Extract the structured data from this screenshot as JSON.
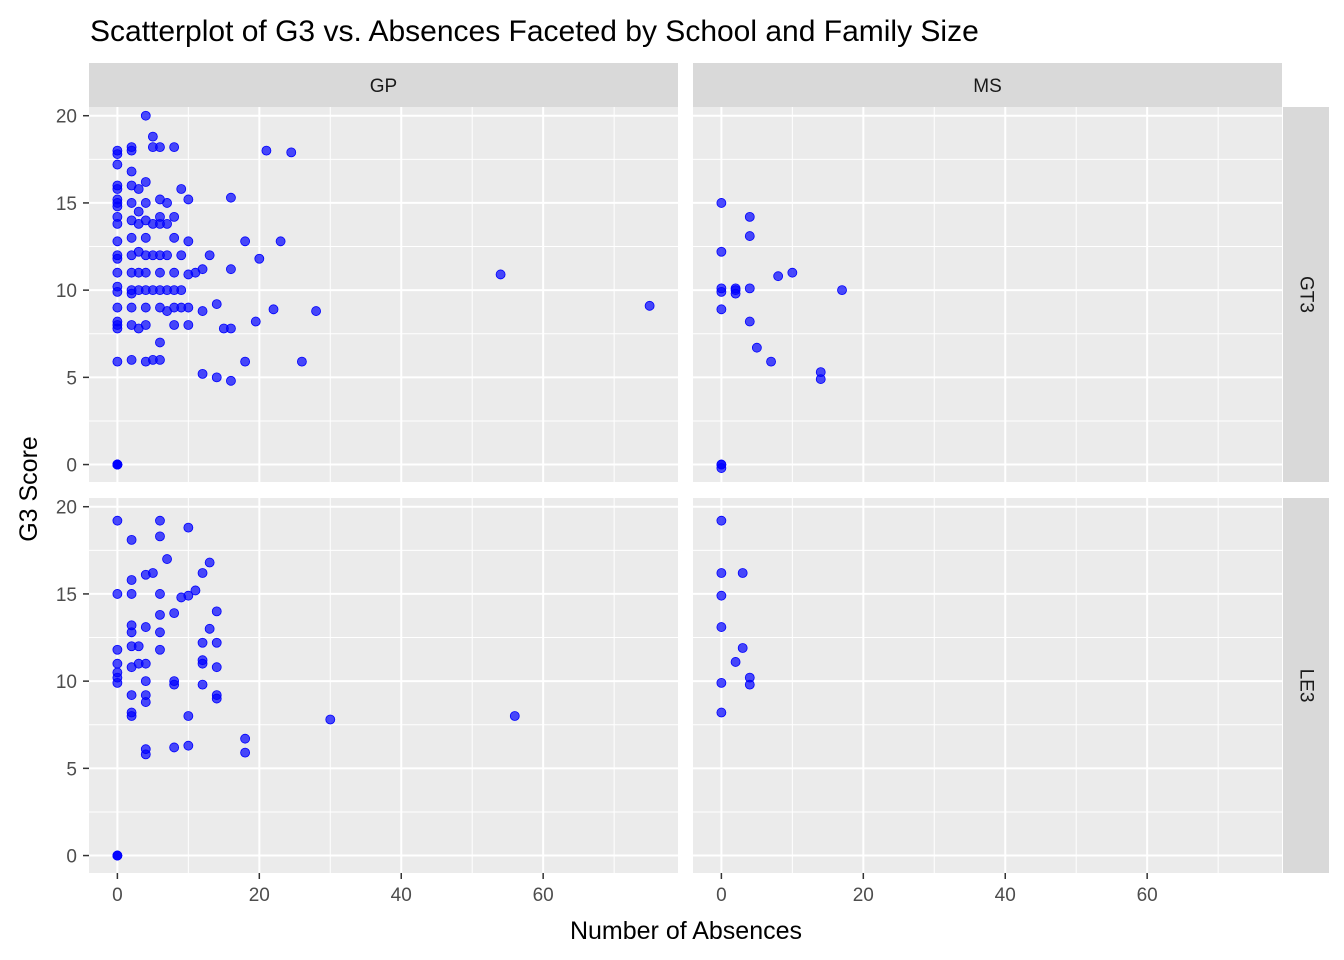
{
  "chart_data": {
    "type": "scatter",
    "title": "Scatterplot of G3 vs. Absences Faceted by School and Family Size",
    "xlabel": "Number of Absences",
    "ylabel": "G3 Score",
    "xlim": [
      -4,
      79
    ],
    "ylim": [
      -1,
      20.5
    ],
    "x_ticks": [
      0,
      20,
      40,
      60
    ],
    "y_ticks": [
      0,
      5,
      10,
      15,
      20
    ],
    "grid": true,
    "legend": "none",
    "colors": {
      "point": "#0000ff",
      "panel_bg": "#ebebeb",
      "strip_bg": "#d9d9d9",
      "grid": "#ffffff",
      "tick_text": "#4d4d4d",
      "tick_mark": "#333333"
    },
    "facet_cols": [
      "GP",
      "MS"
    ],
    "facet_rows": [
      "GT3",
      "LE3"
    ],
    "panels": [
      {
        "col": "GP",
        "row": "GT3",
        "points": [
          [
            0,
            0
          ],
          [
            0,
            0
          ],
          [
            0,
            0
          ],
          [
            0,
            0
          ],
          [
            0,
            0
          ],
          [
            0,
            0
          ],
          [
            0,
            5.9
          ],
          [
            0,
            7.8
          ],
          [
            0,
            8
          ],
          [
            0,
            8.2
          ],
          [
            0,
            9
          ],
          [
            0,
            9.9
          ],
          [
            0,
            10.2
          ],
          [
            0,
            11
          ],
          [
            0,
            11.8
          ],
          [
            0,
            12
          ],
          [
            0,
            12.8
          ],
          [
            0,
            13.8
          ],
          [
            0,
            14.2
          ],
          [
            0,
            14.8
          ],
          [
            0,
            15
          ],
          [
            0,
            15.2
          ],
          [
            0,
            15.8
          ],
          [
            0,
            16
          ],
          [
            0,
            17.2
          ],
          [
            0,
            17.8
          ],
          [
            0,
            18
          ],
          [
            2,
            6
          ],
          [
            2,
            8
          ],
          [
            2,
            9
          ],
          [
            2,
            9.8
          ],
          [
            2,
            10
          ],
          [
            2,
            11
          ],
          [
            2,
            12
          ],
          [
            2,
            13
          ],
          [
            2,
            14
          ],
          [
            2,
            15
          ],
          [
            2,
            16
          ],
          [
            2,
            16.8
          ],
          [
            2,
            18
          ],
          [
            2,
            18.2
          ],
          [
            3,
            7.8
          ],
          [
            3,
            10
          ],
          [
            3,
            11
          ],
          [
            3,
            12.2
          ],
          [
            3,
            13.8
          ],
          [
            3,
            14.5
          ],
          [
            3,
            15.8
          ],
          [
            4,
            5.9
          ],
          [
            4,
            8
          ],
          [
            4,
            9
          ],
          [
            4,
            10
          ],
          [
            4,
            11
          ],
          [
            4,
            12
          ],
          [
            4,
            13
          ],
          [
            4,
            14
          ],
          [
            4,
            15
          ],
          [
            4,
            16.2
          ],
          [
            4,
            20
          ],
          [
            5,
            6
          ],
          [
            5,
            10
          ],
          [
            5,
            12
          ],
          [
            5,
            13.8
          ],
          [
            5,
            18.2
          ],
          [
            5,
            18.8
          ],
          [
            6,
            6
          ],
          [
            6,
            7
          ],
          [
            6,
            9
          ],
          [
            6,
            10
          ],
          [
            6,
            11
          ],
          [
            6,
            12
          ],
          [
            6,
            13.8
          ],
          [
            6,
            14.2
          ],
          [
            6,
            15.2
          ],
          [
            6,
            18.2
          ],
          [
            7,
            8.8
          ],
          [
            7,
            10
          ],
          [
            7,
            12
          ],
          [
            7,
            13.8
          ],
          [
            7,
            15
          ],
          [
            8,
            8
          ],
          [
            8,
            9
          ],
          [
            8,
            10
          ],
          [
            8,
            11
          ],
          [
            8,
            13
          ],
          [
            8,
            14.2
          ],
          [
            8,
            18.2
          ],
          [
            9,
            9
          ],
          [
            9,
            10
          ],
          [
            9,
            12
          ],
          [
            9,
            15.8
          ],
          [
            10,
            8
          ],
          [
            10,
            9
          ],
          [
            10,
            10.9
          ],
          [
            10,
            12.8
          ],
          [
            10,
            15.2
          ],
          [
            11,
            11
          ],
          [
            12,
            5.2
          ],
          [
            12,
            8.8
          ],
          [
            12,
            11.2
          ],
          [
            13,
            12
          ],
          [
            14,
            5
          ],
          [
            14,
            9.2
          ],
          [
            15,
            7.8
          ],
          [
            16,
            4.8
          ],
          [
            16,
            7.8
          ],
          [
            16,
            11.2
          ],
          [
            16,
            15.3
          ],
          [
            18,
            5.9
          ],
          [
            18,
            12.8
          ],
          [
            19.5,
            8.2
          ],
          [
            20,
            11.8
          ],
          [
            21,
            18
          ],
          [
            22,
            8.9
          ],
          [
            23,
            12.8
          ],
          [
            24.5,
            17.9
          ],
          [
            26,
            5.9
          ],
          [
            28,
            8.8
          ],
          [
            54,
            10.9
          ],
          [
            75,
            9.1
          ]
        ]
      },
      {
        "col": "MS",
        "row": "GT3",
        "points": [
          [
            0,
            0
          ],
          [
            0,
            -0.2
          ],
          [
            0,
            0
          ],
          [
            0,
            9.9
          ],
          [
            0,
            10.1
          ],
          [
            0,
            12.2
          ],
          [
            0,
            15
          ],
          [
            0,
            8.9
          ],
          [
            2,
            9.8
          ],
          [
            2,
            10
          ],
          [
            2,
            10.1
          ],
          [
            4,
            8.2
          ],
          [
            4,
            10.1
          ],
          [
            4,
            13.1
          ],
          [
            4,
            14.2
          ],
          [
            5,
            6.7
          ],
          [
            7,
            5.9
          ],
          [
            8,
            10.8
          ],
          [
            10,
            11
          ],
          [
            14,
            4.9
          ],
          [
            14,
            5.3
          ],
          [
            17,
            10
          ]
        ]
      },
      {
        "col": "GP",
        "row": "LE3",
        "points": [
          [
            0,
            0
          ],
          [
            0,
            0
          ],
          [
            0,
            0
          ],
          [
            0,
            9.9
          ],
          [
            0,
            10.2
          ],
          [
            0,
            10.5
          ],
          [
            0,
            11
          ],
          [
            0,
            11.8
          ],
          [
            0,
            15
          ],
          [
            0,
            19.2
          ],
          [
            2,
            8
          ],
          [
            2,
            8.2
          ],
          [
            2,
            9.2
          ],
          [
            2,
            10.8
          ],
          [
            2,
            12
          ],
          [
            2,
            12.8
          ],
          [
            2,
            13.2
          ],
          [
            2,
            15
          ],
          [
            2,
            15.8
          ],
          [
            2,
            18.1
          ],
          [
            3,
            11
          ],
          [
            3,
            12
          ],
          [
            4,
            5.8
          ],
          [
            4,
            6.1
          ],
          [
            4,
            8.8
          ],
          [
            4,
            9.2
          ],
          [
            4,
            10
          ],
          [
            4,
            11
          ],
          [
            4,
            13.1
          ],
          [
            4,
            16.1
          ],
          [
            5,
            16.2
          ],
          [
            6,
            11.8
          ],
          [
            6,
            12.8
          ],
          [
            6,
            13.8
          ],
          [
            6,
            15
          ],
          [
            6,
            18.3
          ],
          [
            6,
            19.2
          ],
          [
            7,
            17
          ],
          [
            8,
            6.2
          ],
          [
            8,
            9.8
          ],
          [
            8,
            10
          ],
          [
            8,
            13.9
          ],
          [
            9,
            14.8
          ],
          [
            10,
            6.3
          ],
          [
            10,
            8
          ],
          [
            10,
            14.9
          ],
          [
            10,
            18.8
          ],
          [
            11,
            15.2
          ],
          [
            12,
            9.8
          ],
          [
            12,
            11
          ],
          [
            12,
            11.2
          ],
          [
            12,
            12.2
          ],
          [
            12,
            16.2
          ],
          [
            13,
            13
          ],
          [
            13,
            16.8
          ],
          [
            14,
            9
          ],
          [
            14,
            9.2
          ],
          [
            14,
            10.8
          ],
          [
            14,
            12.2
          ],
          [
            14,
            14
          ],
          [
            18,
            5.9
          ],
          [
            18,
            6.7
          ],
          [
            30,
            7.8
          ],
          [
            56,
            8
          ]
        ]
      },
      {
        "col": "MS",
        "row": "LE3",
        "points": [
          [
            0,
            8.2
          ],
          [
            0,
            9.9
          ],
          [
            0,
            13.1
          ],
          [
            0,
            14.9
          ],
          [
            0,
            16.2
          ],
          [
            0,
            19.2
          ],
          [
            2,
            11.1
          ],
          [
            3,
            11.9
          ],
          [
            3,
            16.2
          ],
          [
            4,
            9.8
          ],
          [
            4,
            10.2
          ]
        ]
      }
    ]
  }
}
